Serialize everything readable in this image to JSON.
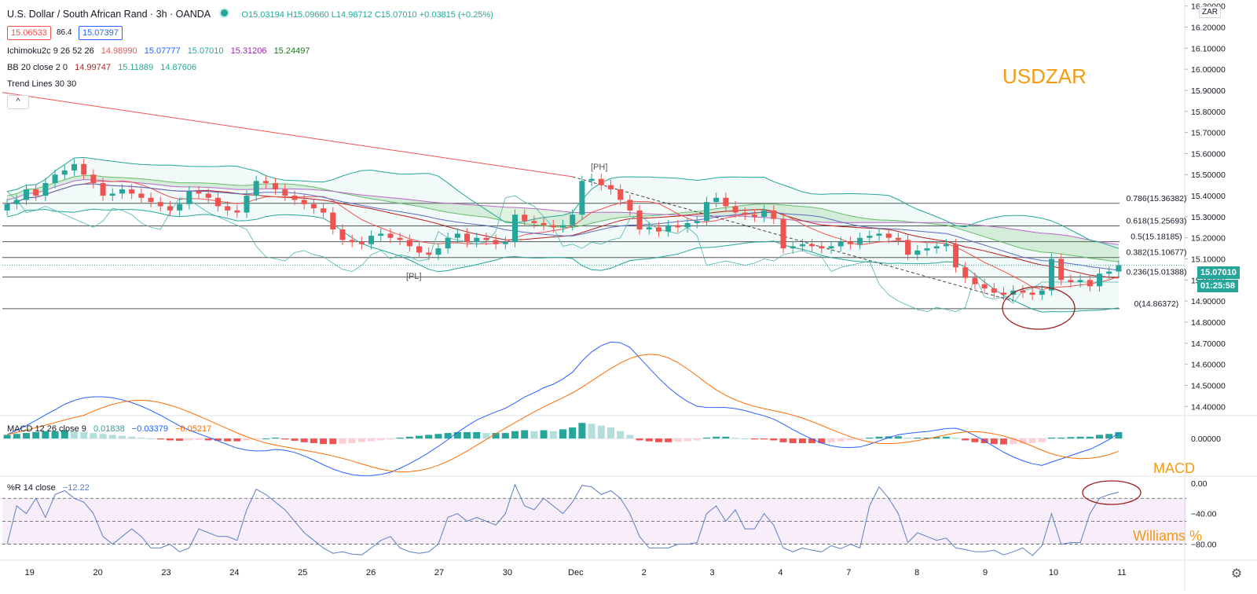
{
  "header": {
    "title": "U.S. Dollar / South African Rand · 3h · OANDA",
    "ohlc": "O15.03194 H15.09660 L14.98712 C15.07010 +0.03815 (+0.25%)",
    "sell_price": "15.06533",
    "spread": "86.4",
    "buy_price": "15.07397",
    "collapse_glyph": "^",
    "currency_label": "ZAR"
  },
  "indicators": {
    "ichimoku": {
      "name": "Ichimoku2c 9 26 52 26",
      "v1": "14.98990",
      "v2": "15.07777",
      "v3": "15.07010",
      "v4": "15.31206",
      "v5": "15.24497"
    },
    "bb": {
      "name": "BB 20 close 2 0",
      "v1": "14.99747",
      "v2": "15.11889",
      "v3": "14.87606"
    },
    "trend": {
      "name": "Trend Lines 30 30"
    },
    "macd": {
      "name": "MACD 12 26 close 9",
      "v1": "0.01838",
      "v2": "−0.03379",
      "v3": "−0.05217"
    },
    "wr": {
      "name": "%R 14 close",
      "v1": "−12.22"
    }
  },
  "annotations": {
    "symbol": "USDZAR",
    "macd": "MACD",
    "williams": "Williams %",
    "ph": "[PH]",
    "pl": "[PL]"
  },
  "price_tags": {
    "last": "15.07010",
    "countdown": "01:25:58"
  },
  "colors": {
    "up": "#26a69a",
    "down": "#ef5350",
    "accent": "#f39c12",
    "macd_line": "#2962ff",
    "signal_line": "#ff6d00",
    "wr_line": "#5b7fc4",
    "ellipse": "#9b1c1c"
  },
  "chart_data": {
    "type": "candlestick",
    "x_tick_labels": [
      "19",
      "20",
      "23",
      "24",
      "25",
      "26",
      "27",
      "30",
      "Dec",
      "2",
      "3",
      "4",
      "7",
      "8",
      "9",
      "10",
      "11"
    ],
    "price_axis": [
      "16.30000",
      "16.20000",
      "16.10000",
      "16.00000",
      "15.90000",
      "15.80000",
      "15.70000",
      "15.60000",
      "15.50000",
      "15.40000",
      "15.30000",
      "15.20000",
      "15.10000",
      "15.00000",
      "14.90000",
      "14.80000",
      "14.70000",
      "14.60000",
      "14.50000",
      "14.40000"
    ],
    "price_range": [
      14.36,
      16.31
    ],
    "fib_levels": [
      {
        "label": "0.786(15.36382)",
        "value": 15.36382
      },
      {
        "label": "0.618(15.25693)",
        "value": 15.25693
      },
      {
        "label": "0.5(15.18185)",
        "value": 15.18185
      },
      {
        "label": "0.382(15.10677)",
        "value": 15.10677
      },
      {
        "label": "0.236(15.01388)",
        "value": 15.01388
      },
      {
        "label": "0(14.86372)",
        "value": 14.86372
      }
    ],
    "closes": [
      15.36,
      15.38,
      15.43,
      15.4,
      15.46,
      15.5,
      15.52,
      15.55,
      15.5,
      15.46,
      15.4,
      15.41,
      15.43,
      15.41,
      15.39,
      15.37,
      15.35,
      15.33,
      15.36,
      15.42,
      15.41,
      15.39,
      15.35,
      15.33,
      15.32,
      15.4,
      15.47,
      15.46,
      15.43,
      15.4,
      15.38,
      15.36,
      15.34,
      15.32,
      15.24,
      15.19,
      15.18,
      15.17,
      15.21,
      15.22,
      15.2,
      15.19,
      15.16,
      15.13,
      15.12,
      15.15,
      15.2,
      15.22,
      15.18,
      15.2,
      15.19,
      15.17,
      15.18,
      15.31,
      15.28,
      15.27,
      15.26,
      15.25,
      15.26,
      15.31,
      15.47,
      15.48,
      15.45,
      15.43,
      15.38,
      15.33,
      15.24,
      15.25,
      15.23,
      15.26,
      15.25,
      15.27,
      15.28,
      15.37,
      15.39,
      15.35,
      15.32,
      15.31,
      15.3,
      15.33,
      15.29,
      15.15,
      15.16,
      15.17,
      15.16,
      15.15,
      15.16,
      15.18,
      15.17,
      15.2,
      15.21,
      15.22,
      15.2,
      15.19,
      15.12,
      15.14,
      15.15,
      15.16,
      15.17,
      15.06,
      15.01,
      14.98,
      14.96,
      14.94,
      14.93,
      14.95,
      14.94,
      14.93,
      14.95,
      15.1,
      15.0,
      14.99,
      15.0,
      14.97,
      15.03,
      15.04,
      15.07
    ],
    "macd_axis": [
      "0.00000"
    ],
    "macd_range": [
      -0.2,
      0.12
    ],
    "macd_hist": [
      0.02,
      0.025,
      0.03,
      0.035,
      0.04,
      0.04,
      0.045,
      0.04,
      0.035,
      0.03,
      0.025,
      0.02,
      0.015,
      0.01,
      0.005,
      0,
      -0.005,
      -0.01,
      -0.012,
      -0.01,
      -0.008,
      -0.01,
      -0.012,
      -0.015,
      -0.015,
      -0.01,
      -0.005,
      0,
      0.005,
      -0.005,
      -0.012,
      -0.02,
      -0.025,
      -0.03,
      -0.03,
      -0.028,
      -0.025,
      -0.02,
      -0.015,
      -0.01,
      -0.005,
      0.005,
      0.01,
      0.015,
      0.02,
      0.025,
      0.03,
      0.035,
      0.035,
      0.035,
      0.03,
      0.03,
      0.03,
      0.04,
      0.045,
      0.04,
      0.045,
      0.04,
      0.05,
      0.06,
      0.085,
      0.08,
      0.07,
      0.06,
      0.04,
      0.02,
      -0.01,
      -0.015,
      -0.02,
      -0.02,
      -0.018,
      -0.015,
      -0.01,
      0.005,
      0.01,
      0.01,
      0.005,
      0,
      -0.005,
      -0.005,
      -0.01,
      -0.02,
      -0.025,
      -0.025,
      -0.025,
      -0.025,
      -0.02,
      -0.015,
      -0.01,
      -0.005,
      0.005,
      0.01,
      0.012,
      0.012,
      0.005,
      0.005,
      0.005,
      0.008,
      0.01,
      0.005,
      -0.01,
      -0.02,
      -0.025,
      -0.03,
      -0.032,
      -0.03,
      -0.028,
      -0.025,
      -0.02,
      0.005,
      0.005,
      0.008,
      0.01,
      0.01,
      0.02,
      0.025,
      0.035
    ],
    "wr_axis": [
      "0.00",
      "−40.00",
      "−80.00"
    ],
    "wr_range": [
      -100,
      8
    ],
    "wr_levels": [
      -20,
      -50,
      -80
    ],
    "wr_values": [
      -80,
      -30,
      -40,
      -20,
      -45,
      -15,
      -10,
      -20,
      -25,
      -40,
      -70,
      -80,
      -70,
      -60,
      -70,
      -85,
      -85,
      -80,
      -90,
      -85,
      -60,
      -65,
      -70,
      -70,
      -75,
      -35,
      -8,
      -15,
      -25,
      -35,
      -50,
      -65,
      -75,
      -85,
      -92,
      -90,
      -93,
      -94,
      -85,
      -75,
      -70,
      -85,
      -90,
      -92,
      -90,
      -80,
      -45,
      -40,
      -50,
      -45,
      -50,
      -55,
      -40,
      -2,
      -30,
      -35,
      -20,
      -30,
      -40,
      -25,
      -3,
      -5,
      -15,
      -10,
      -20,
      -40,
      -70,
      -85,
      -85,
      -85,
      -80,
      -80,
      -78,
      -40,
      -30,
      -50,
      -35,
      -60,
      -60,
      -40,
      -55,
      -85,
      -90,
      -85,
      -88,
      -90,
      -82,
      -86,
      -80,
      -85,
      -30,
      -5,
      -20,
      -40,
      -78,
      -65,
      -70,
      -75,
      -72,
      -85,
      -87,
      -90,
      -90,
      -88,
      -94,
      -90,
      -85,
      -95,
      -82,
      -40,
      -80,
      -78,
      -78,
      -40,
      -20,
      -15,
      -12
    ]
  }
}
